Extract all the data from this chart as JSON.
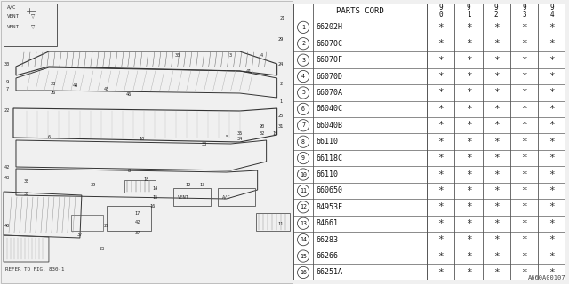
{
  "part_code_label": "PARTS CORD",
  "year_cols": [
    "9\n0",
    "9\n1",
    "9\n2",
    "9\n3",
    "9\n4"
  ],
  "parts": [
    {
      "num": "1",
      "code": "66202H"
    },
    {
      "num": "2",
      "code": "66070C"
    },
    {
      "num": "3",
      "code": "66070F"
    },
    {
      "num": "4",
      "code": "66070D"
    },
    {
      "num": "5",
      "code": "66070A"
    },
    {
      "num": "6",
      "code": "66040C"
    },
    {
      "num": "7",
      "code": "66040B"
    },
    {
      "num": "8",
      "code": "66110"
    },
    {
      "num": "9",
      "code": "66118C"
    },
    {
      "num": "10",
      "code": "66110"
    },
    {
      "num": "11",
      "code": "660650"
    },
    {
      "num": "12",
      "code": "84953F"
    },
    {
      "num": "13",
      "code": "84661"
    },
    {
      "num": "14",
      "code": "66283"
    },
    {
      "num": "15",
      "code": "66266"
    },
    {
      "num": "16",
      "code": "66251A"
    }
  ],
  "footer_code": "A660A00107",
  "bg_color": "#f0f0f0",
  "table_bg": "#ffffff",
  "line_color": "#555555",
  "text_color": "#222222"
}
